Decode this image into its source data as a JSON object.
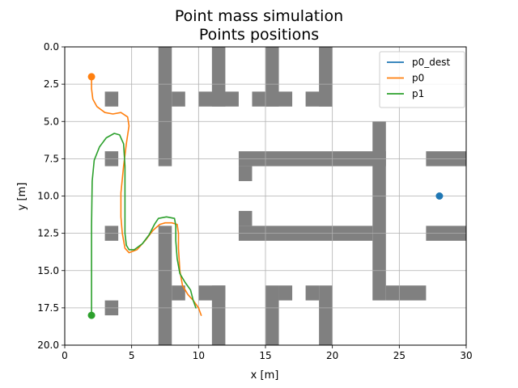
{
  "chart_data": {
    "type": "line",
    "title": "Point mass simulation",
    "subtitle": "Points positions",
    "xlabel": "x [m]",
    "ylabel": "y [m]",
    "xlim": [
      0,
      30
    ],
    "ylim": [
      20,
      0
    ],
    "y_inverted": true,
    "grid": true,
    "legend_position": "top-right",
    "x_ticks": [
      0,
      5,
      10,
      15,
      20,
      25,
      30
    ],
    "x_tick_labels": [
      "0",
      "5",
      "10",
      "15",
      "20",
      "25",
      "30"
    ],
    "y_ticks": [
      0,
      2.5,
      5,
      7.5,
      10,
      12.5,
      15,
      17.5,
      20
    ],
    "y_tick_labels": [
      "0.0",
      "2.5",
      "5.0",
      "7.5",
      "10.0",
      "12.5",
      "15.0",
      "17.5",
      "20.0"
    ],
    "obstacle_color": "#808080",
    "obstacles": [
      {
        "x": [
          7,
          8
        ],
        "y": [
          0,
          8
        ]
      },
      {
        "x": [
          8,
          9
        ],
        "y": [
          3,
          4
        ]
      },
      {
        "x": [
          11,
          12
        ],
        "y": [
          0,
          4
        ]
      },
      {
        "x": [
          10,
          13
        ],
        "y": [
          3,
          4
        ]
      },
      {
        "x": [
          15,
          16
        ],
        "y": [
          0,
          4
        ]
      },
      {
        "x": [
          14,
          17
        ],
        "y": [
          3,
          4
        ]
      },
      {
        "x": [
          19,
          20
        ],
        "y": [
          0,
          4
        ]
      },
      {
        "x": [
          18,
          20
        ],
        "y": [
          3,
          4
        ]
      },
      {
        "x": [
          3,
          4
        ],
        "y": [
          3,
          4
        ]
      },
      {
        "x": [
          3,
          4
        ],
        "y": [
          7,
          8
        ]
      },
      {
        "x": [
          3,
          4
        ],
        "y": [
          12,
          13
        ]
      },
      {
        "x": [
          3,
          4
        ],
        "y": [
          17,
          18
        ]
      },
      {
        "x": [
          13,
          24
        ],
        "y": [
          7,
          8
        ]
      },
      {
        "x": [
          13,
          14
        ],
        "y": [
          8,
          9
        ]
      },
      {
        "x": [
          23,
          24
        ],
        "y": [
          5,
          17
        ]
      },
      {
        "x": [
          27,
          30
        ],
        "y": [
          7,
          8
        ]
      },
      {
        "x": [
          13,
          14
        ],
        "y": [
          11,
          12
        ]
      },
      {
        "x": [
          13,
          23
        ],
        "y": [
          12,
          13
        ]
      },
      {
        "x": [
          27,
          30
        ],
        "y": [
          12,
          13
        ]
      },
      {
        "x": [
          24,
          27
        ],
        "y": [
          16,
          17
        ]
      },
      {
        "x": [
          7,
          8
        ],
        "y": [
          12,
          20
        ]
      },
      {
        "x": [
          8,
          9
        ],
        "y": [
          16,
          17
        ]
      },
      {
        "x": [
          11,
          12
        ],
        "y": [
          16,
          20
        ]
      },
      {
        "x": [
          10,
          12
        ],
        "y": [
          16,
          17
        ]
      },
      {
        "x": [
          15,
          16
        ],
        "y": [
          16,
          20
        ]
      },
      {
        "x": [
          16,
          17
        ],
        "y": [
          16,
          17
        ]
      },
      {
        "x": [
          19,
          20
        ],
        "y": [
          16,
          20
        ]
      },
      {
        "x": [
          18,
          19
        ],
        "y": [
          16,
          17
        ]
      }
    ],
    "series": [
      {
        "name": "p0_dest",
        "color": "#1f77b4",
        "x": [
          28
        ],
        "y": [
          10
        ],
        "marker_point": [
          28,
          10
        ]
      },
      {
        "name": "p0",
        "color": "#ff7f0e",
        "x": [
          2.0,
          2.0,
          2.1,
          2.4,
          3.0,
          3.6,
          4.2,
          4.7,
          4.8,
          4.6,
          4.4,
          4.2,
          4.2,
          4.3,
          4.5,
          4.8,
          5.4,
          6.0,
          6.6,
          7.1,
          7.5,
          8.0,
          8.4,
          8.5,
          8.5,
          8.6,
          8.8,
          9.2,
          9.6,
          10.0,
          10.2
        ],
        "y": [
          2.0,
          2.8,
          3.5,
          4.0,
          4.4,
          4.5,
          4.4,
          4.7,
          5.3,
          6.5,
          8.0,
          9.8,
          11.4,
          12.5,
          13.5,
          13.8,
          13.6,
          13.0,
          12.3,
          11.9,
          11.8,
          11.8,
          11.9,
          12.5,
          13.5,
          15.0,
          16.0,
          16.6,
          17.0,
          17.5,
          18.0
        ],
        "marker_point": [
          2,
          2
        ]
      },
      {
        "name": "p1",
        "color": "#2ca02c",
        "x": [
          2.0,
          2.0,
          2.0,
          2.05,
          2.2,
          2.6,
          3.1,
          3.7,
          4.1,
          4.4,
          4.5,
          4.5,
          4.5,
          4.6,
          4.8,
          5.2,
          5.8,
          6.3,
          6.7,
          7.0,
          7.6,
          8.2,
          8.3,
          8.3,
          8.4,
          8.6,
          9.0,
          9.4,
          9.6,
          9.8
        ],
        "y": [
          18.0,
          15.0,
          12.0,
          9.0,
          7.6,
          6.7,
          6.1,
          5.8,
          5.9,
          6.5,
          8.0,
          10.5,
          12.5,
          13.3,
          13.6,
          13.6,
          13.2,
          12.6,
          11.9,
          11.5,
          11.4,
          11.5,
          12.0,
          13.0,
          14.2,
          15.2,
          15.8,
          16.3,
          17.0,
          17.5
        ],
        "marker_point": [
          2,
          18
        ]
      }
    ]
  }
}
